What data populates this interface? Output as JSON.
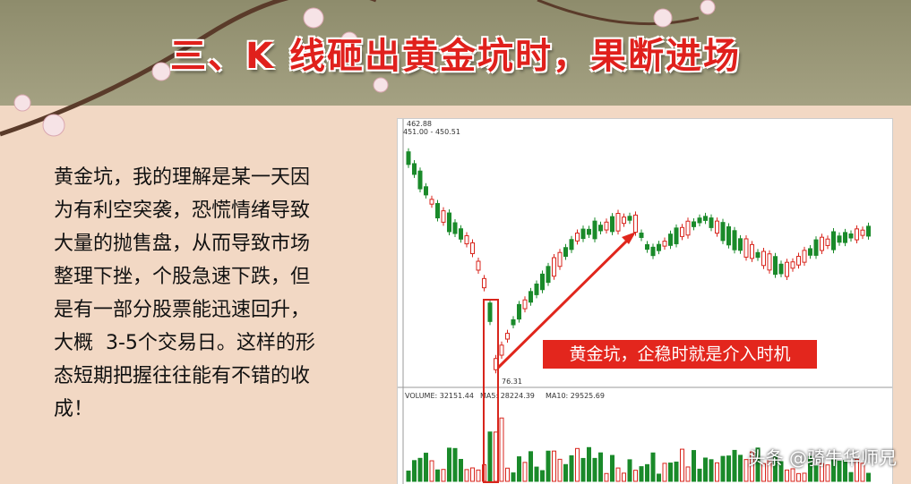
{
  "header": {
    "title": "三、K 线砸出黄金坑时，果断进场"
  },
  "paragraph": [
    "黄金坑，我的理解是某一天因",
    "为有利空突袭，恐慌情绪导致",
    "大量的抛售盘，从而导致市场",
    "整理下挫，个股急速下跌，但",
    "是有一部分股票能迅速回升，",
    "大概  3-5个交易日。这样的形",
    "态短期把握往往能有不错的收",
    "成！"
  ],
  "chart_labels": {
    "high": "462.88",
    "range": "451.00 - 450.51",
    "low": "76.31",
    "volume": "VOLUME: 32151.44",
    "ma5": "MA5: 28224.39",
    "ma10": "MA10: 29525.69"
  },
  "callout": "黄金坑，企稳时就是介入时机",
  "watermark": "头条 @骑牛华师兄"
}
